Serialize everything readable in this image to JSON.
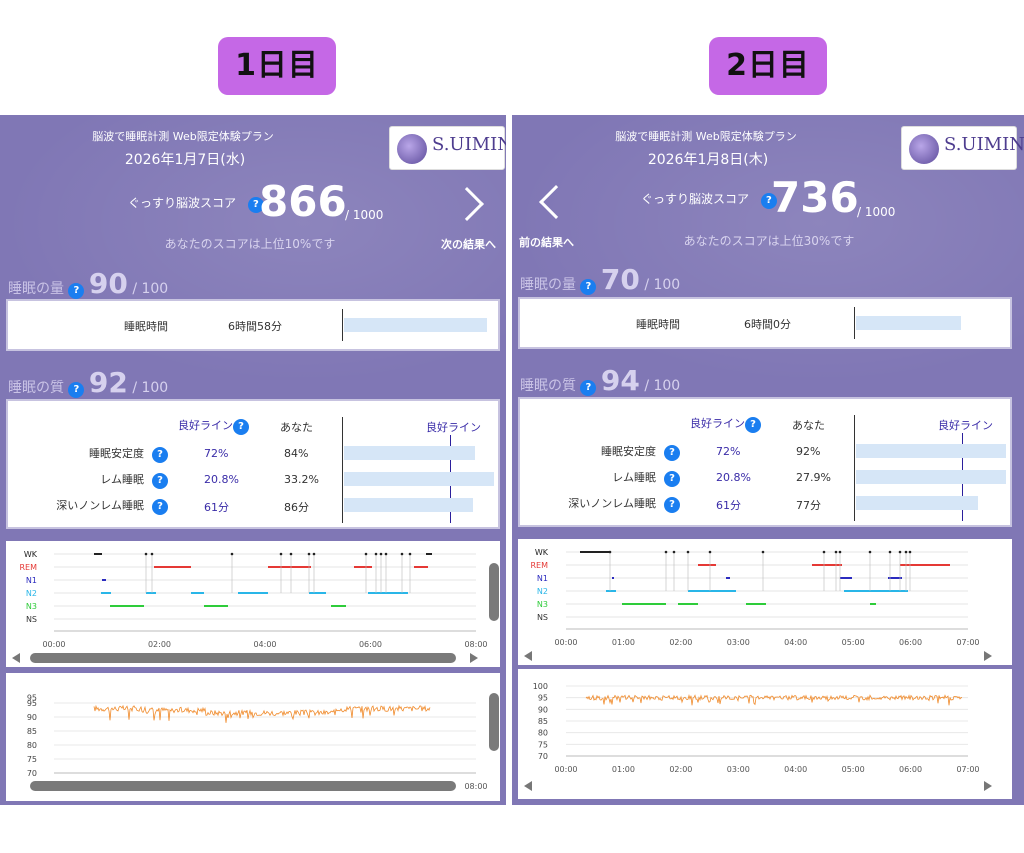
{
  "labels": {
    "day1": "1日目",
    "day2": "2日目"
  },
  "panels": [
    {
      "header_line1": "脳波で睡眠計測 Web限定体験プラン",
      "date": "2026年1月7日(水)",
      "logo_text": "S.UIMIN",
      "score_label": "ぐっすり脳波スコア",
      "score": "866",
      "score_denom": "/ 1000",
      "rank_text": "あなたのスコアは上位10%です",
      "nav_label": "次の結果へ",
      "quantity_title": "睡眠の量",
      "quantity_score": "90",
      "quantity_denom": "/ 100",
      "sleep_time_label": "睡眠時間",
      "sleep_time_value": "6時間58分",
      "sleep_time_fraction": 0.95,
      "quality_title": "睡眠の質",
      "quality_score": "92",
      "quality_denom": "/ 100",
      "col_good": "良好ライン",
      "col_you": "あなた",
      "col_goal_right": "良好ライン",
      "rows": [
        {
          "label": "睡眠安定度",
          "good": "72%",
          "you": "84%",
          "fraction": 0.87
        },
        {
          "label": "レム睡眠",
          "good": "20.8%",
          "you": "33.2%",
          "fraction": 1.0
        },
        {
          "label": "深いノンレム睡眠",
          "good": "61分",
          "you": "86分",
          "fraction": 0.86
        }
      ],
      "hyp_labels": [
        "WK",
        "REM",
        "N1",
        "N2",
        "N3",
        "NS"
      ],
      "time_ticks": [
        "00:00",
        "02:00",
        "04:00",
        "06:00",
        "08:00"
      ],
      "spo2_ticks": [
        "95",
        "90",
        "85",
        "80",
        "75",
        "70"
      ],
      "spo2_top": "95"
    },
    {
      "header_line1": "脳波で睡眠計測 Web限定体験プラン",
      "date": "2026年1月8日(木)",
      "logo_text": "S.UIMIN",
      "score_label": "ぐっすり脳波スコア",
      "score": "736",
      "score_denom": "/ 1000",
      "rank_text": "あなたのスコアは上位30%です",
      "nav_label": "前の結果へ",
      "quantity_title": "睡眠の量",
      "quantity_score": "70",
      "quantity_denom": "/ 100",
      "sleep_time_label": "睡眠時間",
      "sleep_time_value": "6時間0分",
      "sleep_time_fraction": 0.7,
      "quality_title": "睡眠の質",
      "quality_score": "94",
      "quality_denom": "/ 100",
      "col_good": "良好ライン",
      "col_you": "あなた",
      "col_goal_right": "良好ライン",
      "rows": [
        {
          "label": "睡眠安定度",
          "good": "72%",
          "you": "92%",
          "fraction": 1.0
        },
        {
          "label": "レム睡眠",
          "good": "20.8%",
          "you": "27.9%",
          "fraction": 1.0
        },
        {
          "label": "深いノンレム睡眠",
          "good": "61分",
          "you": "77分",
          "fraction": 0.81
        }
      ],
      "hyp_labels": [
        "WK",
        "REM",
        "N1",
        "N2",
        "N3",
        "NS"
      ],
      "time_ticks": [
        "00:00",
        "01:00",
        "02:00",
        "03:00",
        "04:00",
        "05:00",
        "06:00",
        "07:00"
      ],
      "spo2_ticks": [
        "100",
        "95",
        "90",
        "85",
        "80",
        "75",
        "70"
      ]
    }
  ],
  "colors": {
    "panel_bg": "#8077b5",
    "accent_blue": "#1a7ef0",
    "wk": "#222222",
    "rem": "#e53935",
    "n1": "#2b2bbf",
    "n2": "#29b6e8",
    "n3": "#2ecc3a",
    "spo2": "#f08a2a"
  }
}
